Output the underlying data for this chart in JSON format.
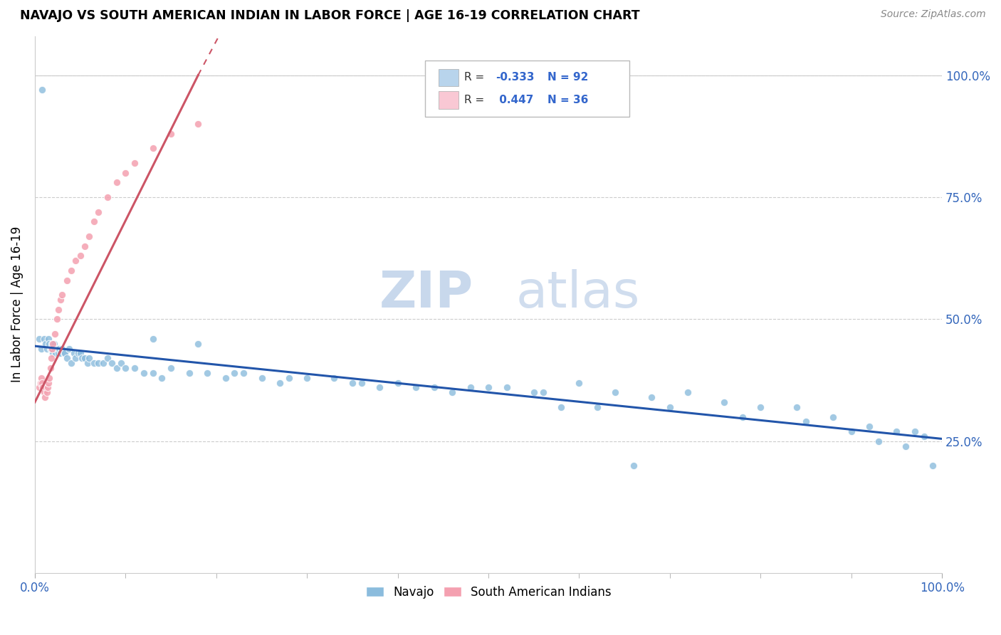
{
  "title": "NAVAJO VS SOUTH AMERICAN INDIAN IN LABOR FORCE | AGE 16-19 CORRELATION CHART",
  "source": "Source: ZipAtlas.com",
  "ylabel": "In Labor Force | Age 16-19",
  "xlim": [
    0,
    1.0
  ],
  "ylim": [
    -0.02,
    1.08
  ],
  "ytick_values": [
    0.0,
    0.25,
    0.5,
    0.75,
    1.0
  ],
  "ytick_labels": [
    "",
    "25.0%",
    "50.0%",
    "75.0%",
    "100.0%"
  ],
  "navajo_color": "#8BBCDD",
  "sa_color": "#F4A0B0",
  "trendline_navajo_color": "#2255AA",
  "trendline_sa_color": "#CC5566",
  "legend1_color": "#B8D4EC",
  "legend2_color": "#F9C8D4",
  "watermark_zip": "ZIP",
  "watermark_atlas": "atlas",
  "navajo_x": [
    0.005,
    0.007,
    0.008,
    0.01,
    0.012,
    0.013,
    0.015,
    0.016,
    0.017,
    0.018,
    0.019,
    0.02,
    0.021,
    0.022,
    0.023,
    0.025,
    0.026,
    0.027,
    0.028,
    0.03,
    0.032,
    0.033,
    0.035,
    0.038,
    0.04,
    0.043,
    0.045,
    0.048,
    0.05,
    0.052,
    0.055,
    0.058,
    0.06,
    0.065,
    0.07,
    0.075,
    0.08,
    0.085,
    0.09,
    0.095,
    0.1,
    0.11,
    0.12,
    0.13,
    0.14,
    0.15,
    0.17,
    0.19,
    0.21,
    0.23,
    0.25,
    0.27,
    0.3,
    0.33,
    0.36,
    0.4,
    0.44,
    0.48,
    0.52,
    0.56,
    0.6,
    0.64,
    0.68,
    0.72,
    0.76,
    0.8,
    0.84,
    0.88,
    0.92,
    0.95,
    0.97,
    0.98,
    0.99,
    0.22,
    0.28,
    0.35,
    0.42,
    0.5,
    0.55,
    0.62,
    0.7,
    0.78,
    0.85,
    0.9,
    0.93,
    0.96,
    0.13,
    0.18,
    0.38,
    0.46,
    0.58,
    0.66
  ],
  "navajo_y": [
    0.46,
    0.44,
    0.97,
    0.46,
    0.45,
    0.44,
    0.46,
    0.45,
    0.44,
    0.44,
    0.45,
    0.43,
    0.45,
    0.44,
    0.43,
    0.44,
    0.43,
    0.44,
    0.43,
    0.44,
    0.43,
    0.43,
    0.42,
    0.44,
    0.41,
    0.43,
    0.42,
    0.43,
    0.43,
    0.42,
    0.42,
    0.41,
    0.42,
    0.41,
    0.41,
    0.41,
    0.42,
    0.41,
    0.4,
    0.41,
    0.4,
    0.4,
    0.39,
    0.39,
    0.38,
    0.4,
    0.39,
    0.39,
    0.38,
    0.39,
    0.38,
    0.37,
    0.38,
    0.38,
    0.37,
    0.37,
    0.36,
    0.36,
    0.36,
    0.35,
    0.37,
    0.35,
    0.34,
    0.35,
    0.33,
    0.32,
    0.32,
    0.3,
    0.28,
    0.27,
    0.27,
    0.26,
    0.2,
    0.39,
    0.38,
    0.37,
    0.36,
    0.36,
    0.35,
    0.32,
    0.32,
    0.3,
    0.29,
    0.27,
    0.25,
    0.24,
    0.46,
    0.45,
    0.36,
    0.35,
    0.32,
    0.2
  ],
  "sa_x": [
    0.005,
    0.006,
    0.007,
    0.008,
    0.009,
    0.01,
    0.011,
    0.012,
    0.013,
    0.014,
    0.015,
    0.016,
    0.017,
    0.018,
    0.019,
    0.02,
    0.022,
    0.024,
    0.026,
    0.028,
    0.03,
    0.035,
    0.04,
    0.045,
    0.05,
    0.055,
    0.06,
    0.065,
    0.07,
    0.08,
    0.09,
    0.1,
    0.11,
    0.13,
    0.15,
    0.18
  ],
  "sa_y": [
    0.36,
    0.37,
    0.38,
    0.37,
    0.36,
    0.35,
    0.34,
    0.36,
    0.35,
    0.36,
    0.37,
    0.38,
    0.4,
    0.42,
    0.44,
    0.45,
    0.47,
    0.5,
    0.52,
    0.54,
    0.55,
    0.58,
    0.6,
    0.62,
    0.63,
    0.65,
    0.67,
    0.7,
    0.72,
    0.75,
    0.78,
    0.8,
    0.82,
    0.85,
    0.88,
    0.9
  ],
  "sa_trendline_x": [
    0.0,
    0.2
  ],
  "sa_trendline_y_start": 0.33,
  "sa_trendline_y_end": 1.02,
  "nav_trendline_x": [
    0.0,
    1.0
  ],
  "nav_trendline_y_start": 0.445,
  "nav_trendline_y_end": 0.255
}
